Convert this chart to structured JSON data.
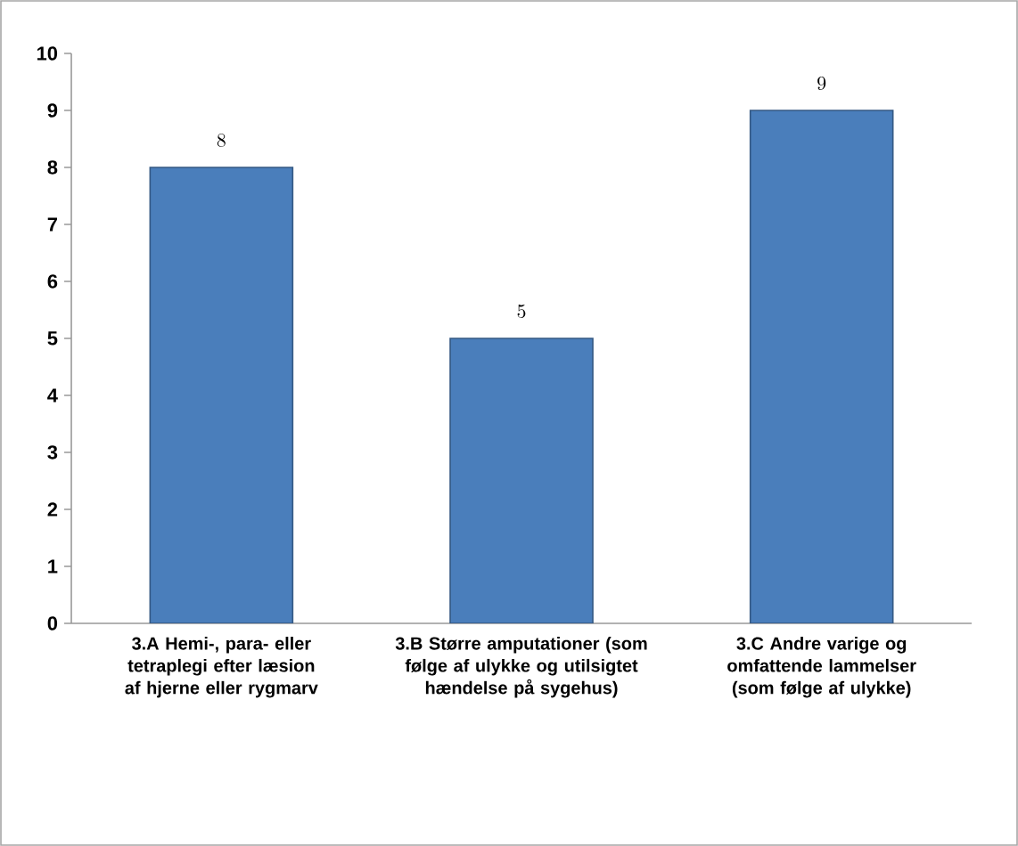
{
  "chart_data": {
    "type": "bar",
    "categories": [
      "3.A Hemi-, para- eller tetraplegi efter læsion af hjerne eller rygmarv",
      "3.B Større amputationer (som følge af ulykke og utilsigtet hændelse på sygehus)",
      "3.C Andre varige og omfattende lammelser (som følge af ulykke)"
    ],
    "values": [
      8,
      5,
      9
    ],
    "color": "#4a7ebb",
    "ylim": [
      0,
      10
    ],
    "yticks": [
      0,
      1,
      2,
      3,
      4,
      5,
      6,
      7,
      8,
      9,
      10
    ],
    "data_labels": true
  }
}
